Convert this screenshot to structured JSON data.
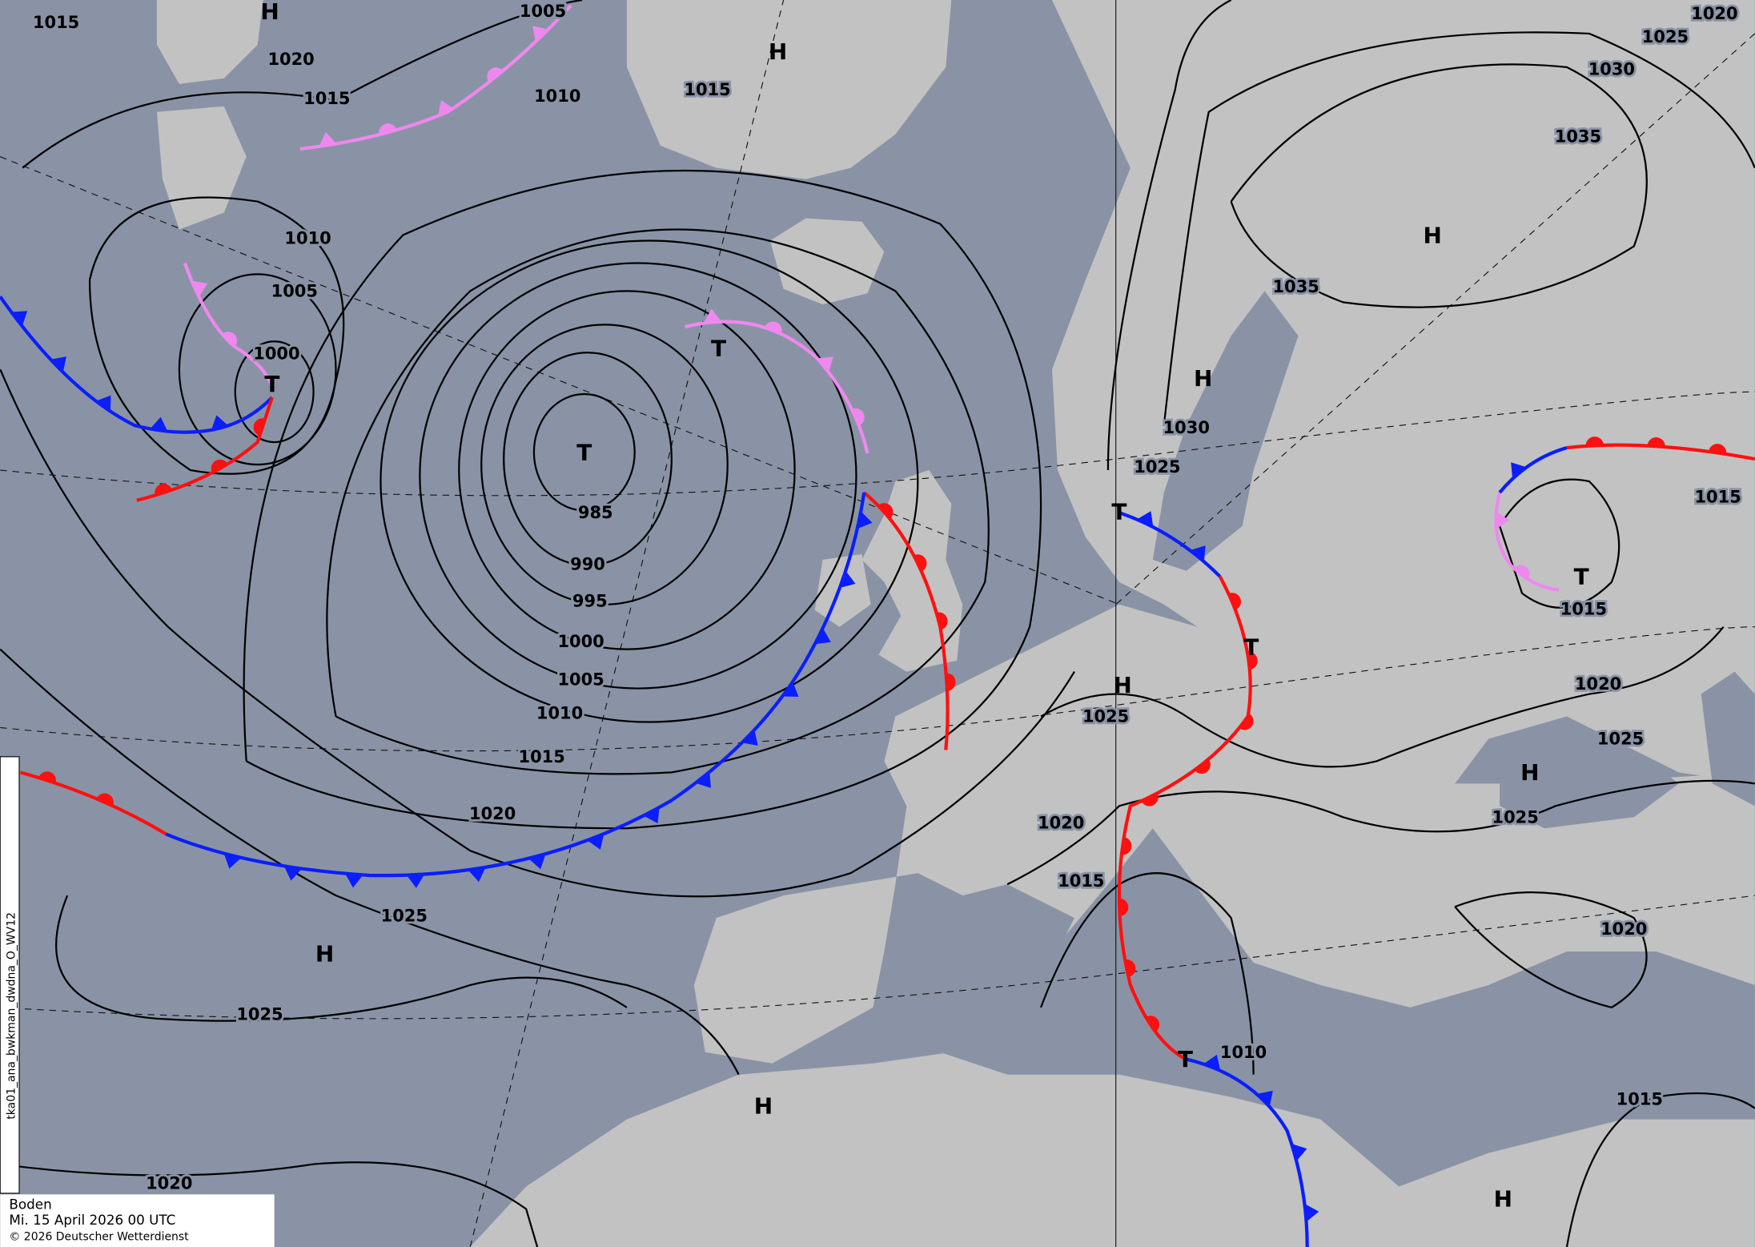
{
  "map": {
    "caption": {
      "level": "Boden",
      "datetime": "Mi. 15 April 2026 00 UTC",
      "copyright": "© 2026 Deutscher Wetterdienst"
    },
    "side_label": "tka01_ana_bwkman_dwdna_O_WV12",
    "colors": {
      "sea": "#8a93a5",
      "land": "#c2c2c2",
      "cold_front": "#0a1eff",
      "warm_front": "#ff1010",
      "occlusion": "#ee88ee",
      "isobar": "#000000"
    },
    "isobar_labels": [
      "1015",
      "1020",
      "1015",
      "1005",
      "1010",
      "1015",
      "1010",
      "1005",
      "1000",
      "985",
      "990",
      "995",
      "1000",
      "1005",
      "1010",
      "1015",
      "1020",
      "1025",
      "1025",
      "1020",
      "1035",
      "1030",
      "1035",
      "1030",
      "1025",
      "1025",
      "1020",
      "1015",
      "1010",
      "1020",
      "1025",
      "1025",
      "1020",
      "1015",
      "1015",
      "1015",
      "1020",
      "1025"
    ],
    "pressure_centers": [
      "H",
      "H",
      "T",
      "T",
      "T",
      "H",
      "H",
      "T",
      "T",
      "H",
      "H",
      "T",
      "H",
      "H",
      "T",
      "H"
    ],
    "front_types": [
      "cold",
      "warm",
      "occlusion",
      "occlusion",
      "occlusion",
      "warm",
      "cold",
      "warm",
      "cold",
      "warm",
      "cold",
      "occlusion",
      "cold",
      "warm"
    ]
  }
}
